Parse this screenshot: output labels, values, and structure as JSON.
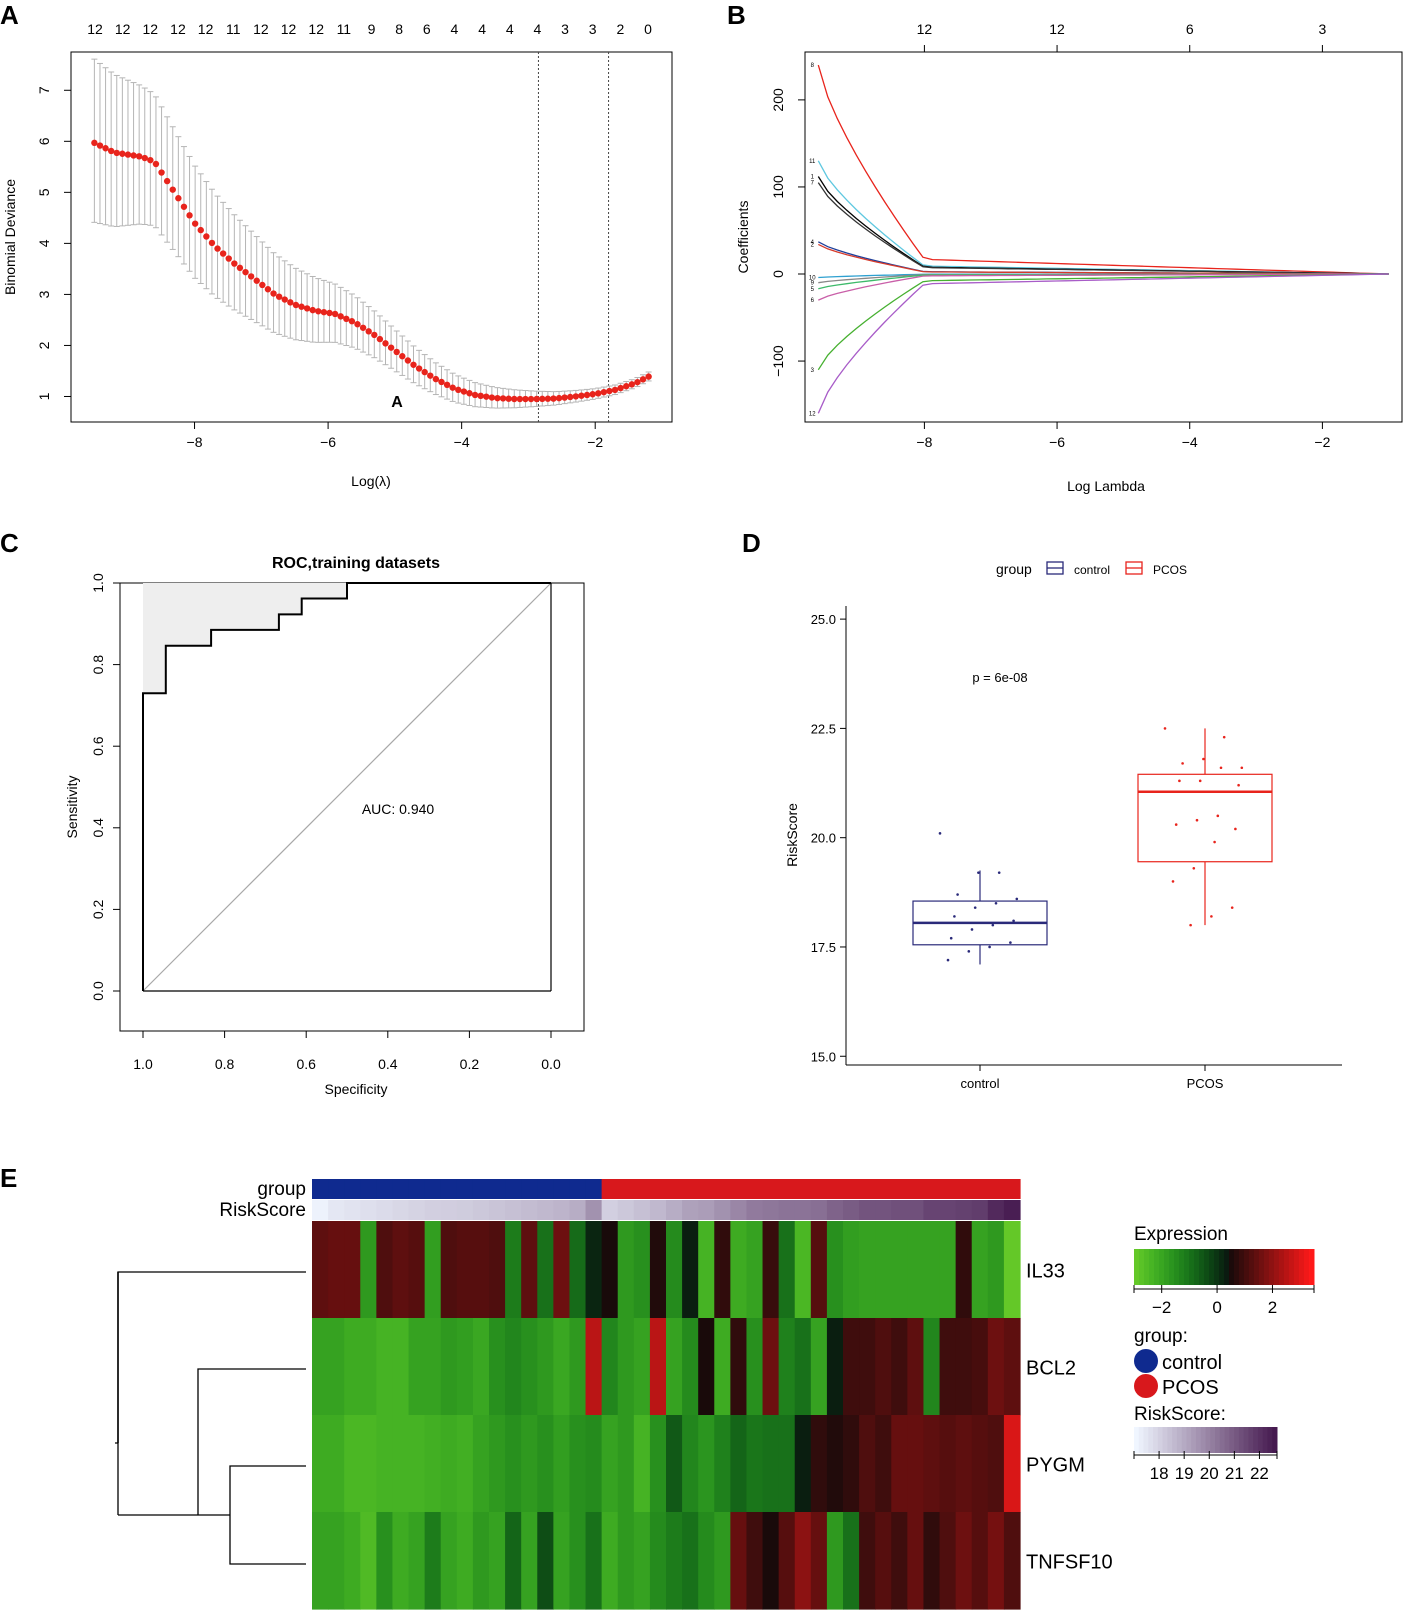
{
  "chart_data": [
    {
      "panel": "A",
      "type": "line",
      "xlabel": "Log(λ)",
      "ylabel": "Binomial Deviance",
      "x_ticks": [
        "-8",
        "-6",
        "-4",
        "-2"
      ],
      "y_ticks": [
        "1",
        "2",
        "3",
        "4",
        "5",
        "6",
        "7"
      ],
      "top_counts": [
        "12",
        "12",
        "12",
        "12",
        "12",
        "11",
        "12",
        "12",
        "12",
        "11",
        "9",
        "8",
        "6",
        "4",
        "4",
        "4",
        "4",
        "3",
        "3",
        "2",
        "0"
      ],
      "xlim": [
        -9.85,
        -0.85
      ],
      "ylim": [
        0.5,
        7.75
      ],
      "annotation": "A",
      "vlines": [
        -2.85,
        -1.8
      ],
      "curve_points": [
        [
          -9.5,
          5.97
        ],
        [
          -9.2,
          5.78
        ],
        [
          -8.8,
          5.7
        ],
        [
          -8.6,
          5.6
        ],
        [
          -8.3,
          5.0
        ],
        [
          -8.0,
          4.4
        ],
        [
          -7.7,
          3.95
        ],
        [
          -7.4,
          3.6
        ],
        [
          -7.1,
          3.3
        ],
        [
          -6.8,
          3.0
        ],
        [
          -6.5,
          2.8
        ],
        [
          -6.2,
          2.68
        ],
        [
          -5.9,
          2.62
        ],
        [
          -5.6,
          2.45
        ],
        [
          -5.3,
          2.2
        ],
        [
          -5.0,
          1.9
        ],
        [
          -4.7,
          1.6
        ],
        [
          -4.4,
          1.35
        ],
        [
          -4.1,
          1.15
        ],
        [
          -3.8,
          1.03
        ],
        [
          -3.5,
          0.97
        ],
        [
          -3.2,
          0.95
        ],
        [
          -2.9,
          0.95
        ],
        [
          -2.6,
          0.96
        ],
        [
          -2.3,
          1.0
        ],
        [
          -2.0,
          1.05
        ],
        [
          -1.7,
          1.13
        ],
        [
          -1.4,
          1.26
        ],
        [
          -1.2,
          1.39
        ]
      ],
      "error_width": [
        1.55,
        1.2
      ]
    },
    {
      "panel": "B",
      "type": "line",
      "xlabel": "Log Lambda",
      "ylabel": "Coefficients",
      "x_ticks": [
        "-8",
        "-6",
        "-4",
        "-2"
      ],
      "y_ticks": [
        "-100",
        "0",
        "100",
        "200"
      ],
      "top_counts": [
        "12",
        "12",
        "6",
        "3"
      ],
      "top_count_x": [
        -8,
        -6,
        -4,
        -2
      ],
      "xlim": [
        -9.8,
        -0.8
      ],
      "ylim": [
        -170,
        255
      ],
      "series": [
        {
          "name": "8",
          "start": 240,
          "color": "#e8241c"
        },
        {
          "name": "11",
          "start": 130,
          "color": "#5fc8e0"
        },
        {
          "name": "1",
          "start": 112,
          "color": "#000000"
        },
        {
          "name": "7",
          "start": 105,
          "color": "#333333"
        },
        {
          "name": "4",
          "start": 37,
          "color": "#1f3f9a"
        },
        {
          "name": "2",
          "start": 34,
          "color": "#d63a2a"
        },
        {
          "name": "10",
          "start": -4,
          "color": "#2ea0d0"
        },
        {
          "name": "9",
          "start": -10,
          "color": "#888888"
        },
        {
          "name": "5",
          "start": -17,
          "color": "#3dba6a"
        },
        {
          "name": "6",
          "start": -30,
          "color": "#c95fa8"
        },
        {
          "name": "3",
          "start": -110,
          "color": "#46b030"
        },
        {
          "name": "12",
          "start": -160,
          "color": "#a85cc8"
        }
      ]
    },
    {
      "panel": "C",
      "type": "line",
      "title": "ROC,training datasets",
      "xlabel": "Specificity",
      "ylabel": "Sensitivity",
      "x_ticks": [
        "1.0",
        "0.8",
        "0.6",
        "0.4",
        "0.2",
        "0.0"
      ],
      "y_ticks": [
        "0.0",
        "0.2",
        "0.4",
        "0.6",
        "0.8",
        "1.0"
      ],
      "auc_label": "AUC: 0.940",
      "roc_steps": [
        [
          1.0,
          0.0
        ],
        [
          1.0,
          0.73
        ],
        [
          0.944,
          0.73
        ],
        [
          0.944,
          0.846
        ],
        [
          0.833,
          0.846
        ],
        [
          0.833,
          0.885
        ],
        [
          0.667,
          0.885
        ],
        [
          0.667,
          0.923
        ],
        [
          0.611,
          0.923
        ],
        [
          0.611,
          0.962
        ],
        [
          0.5,
          0.962
        ],
        [
          0.5,
          1.0
        ],
        [
          0.0,
          1.0
        ]
      ]
    },
    {
      "panel": "D",
      "type": "box",
      "legend_title": "group",
      "legend": [
        "control",
        "PCOS"
      ],
      "colors": {
        "control": "#2a2a7a",
        "PCOS": "#e8241c"
      },
      "xlabel": "",
      "ylabel": "RiskScore",
      "categories": [
        "control",
        "PCOS"
      ],
      "y_ticks": [
        "15.0",
        "17.5",
        "20.0",
        "22.5",
        "25.0"
      ],
      "ylim": [
        14.8,
        25.3
      ],
      "pvalue": "p = 6e-08",
      "boxes": [
        {
          "name": "control",
          "q1": 17.55,
          "median": 18.05,
          "q3": 18.55,
          "wlow": 17.1,
          "whigh": 19.25,
          "points": [
            20.1,
            19.2,
            19.2,
            18.7,
            18.6,
            18.5,
            18.4,
            18.2,
            18.1,
            18.0,
            17.9,
            17.7,
            17.6,
            17.5,
            17.4,
            17.2
          ]
        },
        {
          "name": "PCOS",
          "q1": 19.45,
          "median": 21.05,
          "q3": 21.45,
          "wlow": 18.0,
          "whigh": 22.5,
          "points": [
            22.5,
            22.3,
            21.8,
            21.7,
            21.6,
            21.6,
            21.3,
            21.3,
            21.2,
            20.5,
            20.4,
            20.3,
            20.2,
            19.9,
            19.3,
            19.0,
            18.4,
            18.2,
            18.0
          ]
        }
      ]
    },
    {
      "panel": "E",
      "type": "heatmap",
      "rows": [
        "IL33",
        "BCL2",
        "PYGM",
        "TNFSF10"
      ],
      "annotation_rows": [
        "group",
        "RiskScore"
      ],
      "group_split": 18,
      "n_cols": 44,
      "expression_legend": {
        "title": "Expression",
        "ticks": [
          "-2",
          "0",
          "2"
        ]
      },
      "group_legend": {
        "title": "group:",
        "items": [
          "control",
          "PCOS"
        ],
        "colors": [
          "#0f2a8f",
          "#d8181c"
        ]
      },
      "riskscore_legend": {
        "title": "RiskScore:",
        "ticks": [
          "18",
          "19",
          "20",
          "21",
          "22"
        ]
      },
      "riskscore": [
        17.1,
        17.4,
        17.5,
        17.6,
        17.7,
        17.8,
        17.9,
        18.0,
        18.05,
        18.1,
        18.2,
        18.3,
        18.4,
        18.5,
        18.6,
        18.7,
        18.9,
        19.6,
        18.0,
        18.2,
        18.4,
        18.6,
        18.9,
        19.2,
        19.3,
        19.6,
        19.9,
        20.2,
        20.3,
        20.4,
        20.4,
        20.5,
        20.8,
        21.0,
        21.2,
        21.2,
        21.3,
        21.3,
        21.6,
        21.6,
        21.7,
        21.8,
        22.3,
        22.6
      ],
      "values": [
        [
          1.4,
          1.5,
          1.5,
          -1.8,
          1.2,
          1.4,
          1.3,
          -1.9,
          1.2,
          1.3,
          1.3,
          1.2,
          -1.2,
          1.4,
          -1.0,
          1.6,
          -0.9,
          0.2,
          0.5,
          -1.8,
          -1.6,
          0.6,
          -1.5,
          0.3,
          -2.4,
          0.8,
          -2.2,
          -2.0,
          0.9,
          -1.0,
          -2.5,
          1.3,
          -1.6,
          -1.9,
          -2.0,
          -2.0,
          -2.0,
          -2.0,
          -2.0,
          -2.0,
          0.8,
          -2.0,
          -1.8,
          -3.0
        ],
        [
          -2.0,
          -2.0,
          -2.2,
          -2.2,
          -2.4,
          -2.4,
          -2.0,
          -2.0,
          -1.8,
          -1.9,
          -2.1,
          -1.6,
          -1.4,
          -1.6,
          -1.8,
          -2.1,
          -1.8,
          2.6,
          -1.4,
          -1.8,
          -2.0,
          2.6,
          -2.0,
          -1.5,
          0.5,
          -2.2,
          0.8,
          -1.6,
          1.6,
          -1.3,
          -1.0,
          -2.0,
          0.3,
          1.0,
          1.0,
          1.2,
          1.0,
          1.4,
          -1.4,
          1.0,
          1.0,
          1.1,
          1.6,
          1.4
        ],
        [
          -2.2,
          -2.2,
          -2.5,
          -2.5,
          -2.4,
          -2.4,
          -2.4,
          -2.3,
          -2.2,
          -2.3,
          -2.0,
          -1.8,
          -1.6,
          -1.8,
          -1.6,
          -1.9,
          -1.6,
          -1.5,
          -2.0,
          -1.8,
          -2.4,
          -1.6,
          -0.6,
          -1.4,
          -1.7,
          -1.3,
          -0.8,
          -1.1,
          -1.0,
          -1.0,
          0.3,
          0.8,
          0.6,
          0.8,
          1.2,
          1.0,
          1.5,
          1.5,
          1.4,
          1.3,
          1.4,
          1.3,
          1.2,
          3.0
        ],
        [
          -2.0,
          -2.0,
          -2.2,
          -2.6,
          -1.6,
          -2.2,
          -2.0,
          -1.2,
          -2.0,
          -2.2,
          -1.8,
          -2.0,
          -0.8,
          -2.0,
          -0.4,
          -2.0,
          -1.6,
          -1.0,
          -2.2,
          -1.8,
          -2.0,
          -1.5,
          -1.2,
          -1.0,
          -1.5,
          -1.8,
          1.5,
          1.0,
          0.5,
          1.3,
          2.0,
          1.5,
          -1.8,
          -1.0,
          1.0,
          1.3,
          1.0,
          1.5,
          0.8,
          1.2,
          1.6,
          1.3,
          1.7,
          1.2
        ]
      ]
    }
  ]
}
